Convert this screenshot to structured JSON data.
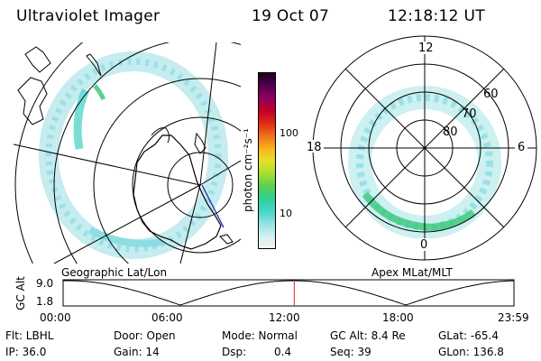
{
  "header": {
    "instrument": "Ultraviolet Imager",
    "date": "19 Oct 07",
    "time": "12:18:12 UT"
  },
  "geo_panel": {
    "caption": "Geographic Lat/Lon"
  },
  "colorbar": {
    "label": "photon cm⁻²s⁻¹",
    "tick_100": "100",
    "tick_10": "10",
    "colors": [
      "#f4f4f4",
      "#cfeff0",
      "#8fe2e4",
      "#44d4c8",
      "#2cd090",
      "#5ed04c",
      "#a8e030",
      "#e8e028",
      "#f8b020",
      "#f07018",
      "#e02818",
      "#c00028",
      "#900060",
      "#500050",
      "#200020"
    ]
  },
  "apex_panel": {
    "caption": "Apex MLat/MLT",
    "mlt_labels": {
      "top": "12",
      "left": "18",
      "right": "6",
      "bottom": "0"
    },
    "lat_labels": {
      "l60": "60",
      "l70": "70",
      "l80": "80"
    }
  },
  "timeline": {
    "axis_label": "GC Alt",
    "ymax": "9.0",
    "ymin": "1.8",
    "ticks": [
      "00:00",
      "06:00",
      "12:00",
      "18:00",
      "23:59"
    ],
    "current_time_fraction": 0.5126,
    "marker_color": "#e02020"
  },
  "status": {
    "flt": "Flt: LBHL",
    "ip": "IP: 36.0",
    "door": "Door: Open",
    "gain": "Gain: 14",
    "mode": "Mode: Normal",
    "dsp_label": "Dsp:",
    "dsp_value": "0.4",
    "gc_alt": "GC Alt: 8.4 Re",
    "seq": "Seq: 39",
    "glat": "GLat: -65.4",
    "glon": "GLon: 136.8"
  }
}
